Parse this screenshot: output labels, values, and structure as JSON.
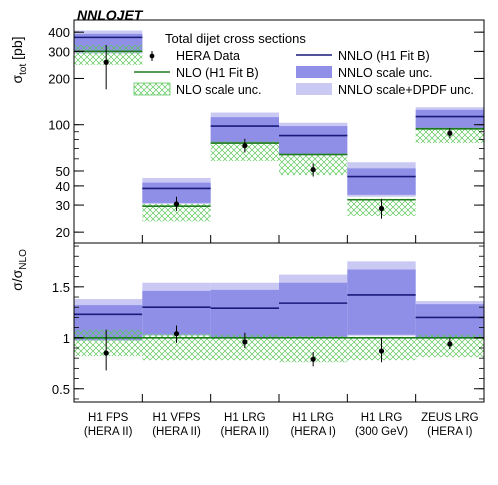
{
  "chart_data": {
    "type": "bar",
    "label": "NNLOJET",
    "title": "Total dijet cross sections",
    "categories": [
      [
        "H1 FPS",
        "(HERA II)"
      ],
      [
        "H1 VFPS",
        "(HERA II)"
      ],
      [
        "H1 LRG",
        "(HERA II)"
      ],
      [
        "H1 LRG",
        "(HERA I)"
      ],
      [
        "H1 LRG",
        "(300 GeV)"
      ],
      [
        "ZEUS LRG",
        "(HERA I)"
      ]
    ],
    "top_panel": {
      "ylabel": "σ_tot [pb]",
      "yscale": "log",
      "ylim": [
        17,
        480
      ],
      "yticks": [
        20,
        30,
        40,
        50,
        100,
        200,
        300,
        400
      ],
      "series": [
        {
          "name": "HERA Data",
          "values": [
            255,
            30.5,
            73,
            51,
            28.5,
            88
          ],
          "err_low": [
            170,
            27.5,
            66,
            46,
            24.5,
            82
          ],
          "err_high": [
            330,
            34,
            81,
            56,
            33,
            95
          ]
        },
        {
          "name": "NLO (H1 Fit B)",
          "values": [
            300,
            29.5,
            76,
            64,
            32.5,
            94
          ]
        },
        {
          "name": "NLO scale unc.",
          "low": [
            245,
            23.5,
            58,
            47,
            25.5,
            76
          ],
          "high": [
            330,
            30.5,
            78,
            65,
            33,
            96
          ]
        },
        {
          "name": "NNLO (H1 Fit B)",
          "values": [
            370,
            38.5,
            98,
            85,
            46,
            113
          ]
        },
        {
          "name": "NNLO scale unc.",
          "low": [
            300,
            31,
            77,
            64,
            35,
            95
          ],
          "high": [
            390,
            42,
            112,
            98,
            52,
            125
          ]
        },
        {
          "name": "NNLO scale+DPDF unc.",
          "low": [
            290,
            30.5,
            75,
            63,
            34,
            93
          ],
          "high": [
            410,
            45,
            120,
            103,
            57,
            130
          ]
        }
      ]
    },
    "bottom_panel": {
      "ylabel": "σ/σ_NLO",
      "ylim": [
        0.37,
        1.93
      ],
      "yticks": [
        0.5,
        1,
        1.5
      ],
      "series": [
        {
          "name": "HERA Data",
          "values": [
            0.85,
            1.04,
            0.96,
            0.79,
            0.87,
            0.94
          ],
          "err_low": [
            0.68,
            0.95,
            0.9,
            0.72,
            0.76,
            0.89
          ],
          "err_high": [
            1.08,
            1.12,
            1.05,
            0.86,
            1.0,
            1.0
          ]
        },
        {
          "name": "NLO (H1 Fit B)",
          "values": [
            1,
            1,
            1,
            1,
            1,
            1
          ]
        },
        {
          "name": "NLO scale unc.",
          "low": [
            0.82,
            0.78,
            0.78,
            0.76,
            0.78,
            0.81
          ],
          "high": [
            1.08,
            1.04,
            1.03,
            1.02,
            1.01,
            1.03
          ]
        },
        {
          "name": "NNLO (H1 Fit B)",
          "values": [
            1.23,
            1.3,
            1.29,
            1.34,
            1.42,
            1.2
          ]
        },
        {
          "name": "NNLO scale unc.",
          "low": [
            0.98,
            1.03,
            1.0,
            1.01,
            1.03,
            1.0
          ],
          "high": [
            1.32,
            1.46,
            1.47,
            1.54,
            1.67,
            1.33
          ]
        },
        {
          "name": "NNLO scale+DPDF unc.",
          "low": [
            0.97,
            1.02,
            0.99,
            1.0,
            1.02,
            0.99
          ],
          "high": [
            1.38,
            1.54,
            1.54,
            1.62,
            1.75,
            1.36
          ]
        }
      ]
    },
    "legend": [
      {
        "key": "data",
        "label": "HERA Data"
      },
      {
        "key": "nnlo",
        "label": "NNLO (H1 Fit B)"
      },
      {
        "key": "nlo",
        "label": "NLO (H1 Fit B)"
      },
      {
        "key": "nnlo_scale",
        "label": "NNLO scale unc."
      },
      {
        "key": "nlo_scale",
        "label": "NLO scale unc."
      },
      {
        "key": "nnlo_dpdf",
        "label": "NNLO scale+DPDF unc."
      }
    ],
    "colors": {
      "nlo": "#1f7a1f",
      "nlo_hatch": "#5ec85e",
      "nnlo": "#1a1a7a",
      "nnlo_scale": "#8f8fe8",
      "nnlo_dpdf": "#c9c9f4",
      "data": "#000000"
    },
    "legend_placement": "top",
    "grid": false
  }
}
